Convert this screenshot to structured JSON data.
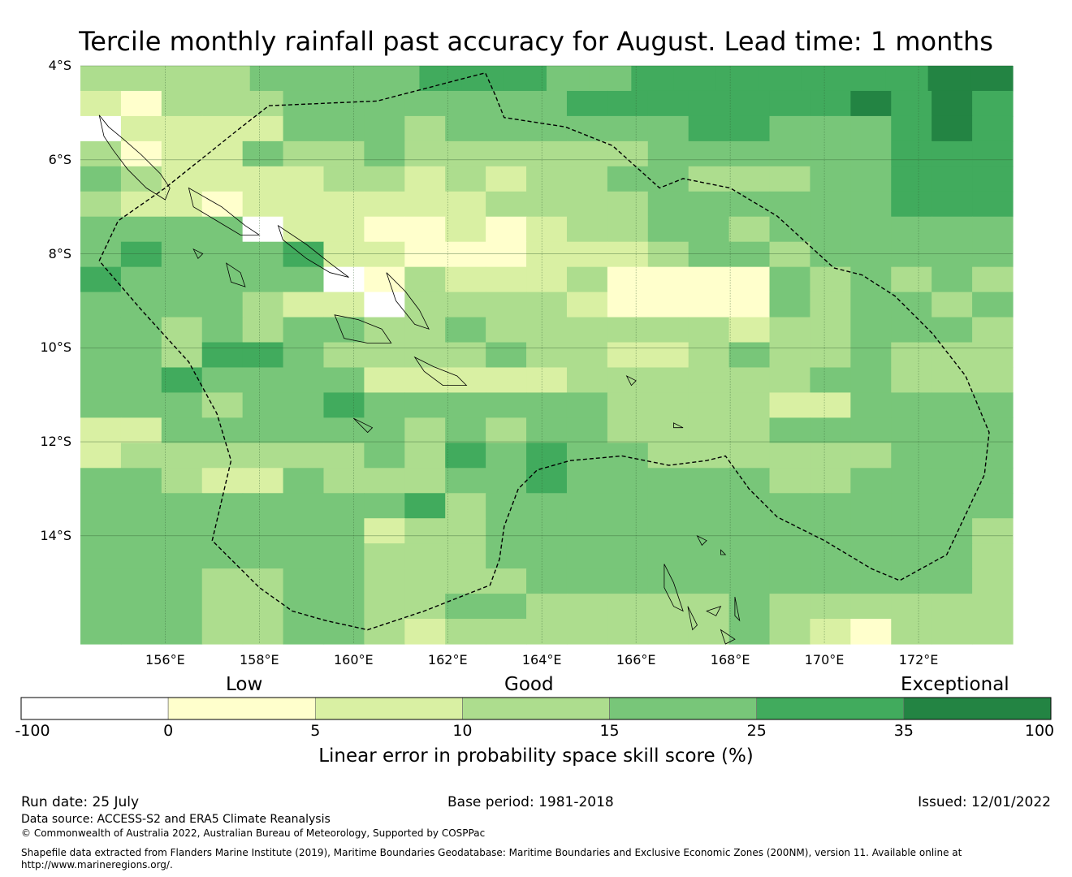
{
  "title": "Tercile monthly rainfall past accuracy for August. Lead time: 1 months",
  "map": {
    "lon_range": [
      154.2,
      174.0
    ],
    "lat_range": [
      -16.3,
      -4.0
    ],
    "lat_labels": [
      "4°S",
      "6°S",
      "8°S",
      "10°S",
      "12°S",
      "14°S"
    ],
    "lat_values": [
      -4,
      -6,
      -8,
      -10,
      -12,
      -14
    ],
    "lon_labels": [
      "156°E",
      "158°E",
      "160°E",
      "162°E",
      "164°E",
      "166°E",
      "168°E",
      "170°E",
      "172°E"
    ],
    "lon_values": [
      156,
      158,
      160,
      162,
      164,
      166,
      168,
      170,
      172
    ],
    "grid_colors": [
      "#ffffff",
      "#ffffcc",
      "#d9f0a3",
      "#addd8e",
      "#78c679",
      "#41ab5d",
      "#238443"
    ],
    "grid": [
      "3333444455544555555566",
      "21333444444455555556565",
      "02222444344444455444565",
      "31224334333333444444555",
      "43222233232334433344555",
      "32212222223333444444555",
      "44440221121233443444444",
      "45444522111222344344444",
      "54444401322231111434343",
      "44443220333321111434434",
      "44343443343333332334443",
      "44355433334332234334333",
      "44544442222233333344333",
      "44434454444443333224444",
      "22444444343443333444444",
      "23333334354544333333444",
      "44322433344544444334444",
      "44444444534444444444444",
      "44444442334444444444443",
      "44444443334444444444443",
      "44433443333444444444443",
      "44433443344333334333333",
      "44433443233333334321333"
    ],
    "eez_boundary": [
      [
        154.6,
        -8.15
      ],
      [
        155.0,
        -7.3
      ],
      [
        156.0,
        -6.6
      ],
      [
        157.0,
        -5.8
      ],
      [
        157.5,
        -5.4
      ],
      [
        158.2,
        -4.85
      ],
      [
        160.5,
        -4.75
      ],
      [
        162.8,
        -4.15
      ],
      [
        163.0,
        -4.6
      ],
      [
        163.2,
        -5.1
      ],
      [
        164.5,
        -5.3
      ],
      [
        165.5,
        -5.7
      ],
      [
        166.5,
        -6.6
      ],
      [
        167.0,
        -6.4
      ],
      [
        168.0,
        -6.6
      ],
      [
        169.0,
        -7.2
      ],
      [
        170.2,
        -8.3
      ],
      [
        170.8,
        -8.45
      ],
      [
        171.5,
        -8.9
      ],
      [
        172.3,
        -9.7
      ],
      [
        173.0,
        -10.6
      ],
      [
        173.5,
        -11.8
      ],
      [
        173.4,
        -12.7
      ],
      [
        172.6,
        -14.4
      ],
      [
        171.6,
        -14.95
      ],
      [
        171.0,
        -14.7
      ],
      [
        170.0,
        -14.1
      ],
      [
        169.0,
        -13.6
      ],
      [
        168.4,
        -13.0
      ],
      [
        167.9,
        -12.3
      ],
      [
        167.5,
        -12.4
      ],
      [
        166.7,
        -12.5
      ],
      [
        165.7,
        -12.3
      ],
      [
        164.6,
        -12.4
      ],
      [
        163.9,
        -12.6
      ],
      [
        163.5,
        -13.0
      ],
      [
        163.2,
        -13.8
      ],
      [
        163.1,
        -14.5
      ],
      [
        162.9,
        -15.05
      ],
      [
        161.5,
        -15.6
      ],
      [
        160.3,
        -16.0
      ],
      [
        159.4,
        -15.8
      ],
      [
        158.7,
        -15.6
      ],
      [
        158.0,
        -15.1
      ],
      [
        157.0,
        -14.1
      ],
      [
        157.4,
        -12.4
      ],
      [
        157.1,
        -11.4
      ],
      [
        156.5,
        -10.3
      ],
      [
        155.5,
        -9.2
      ],
      [
        154.6,
        -8.15
      ]
    ],
    "coastlines": [
      [
        [
          154.6,
          -5.05
        ],
        [
          154.8,
          -5.3
        ],
        [
          155.1,
          -5.55
        ],
        [
          155.5,
          -5.9
        ],
        [
          155.9,
          -6.3
        ],
        [
          156.1,
          -6.6
        ],
        [
          156.0,
          -6.85
        ],
        [
          155.6,
          -6.6
        ],
        [
          155.2,
          -6.2
        ],
        [
          154.9,
          -5.8
        ],
        [
          154.7,
          -5.5
        ],
        [
          154.6,
          -5.05
        ]
      ],
      [
        [
          156.5,
          -6.6
        ],
        [
          157.2,
          -7.0
        ],
        [
          157.7,
          -7.4
        ],
        [
          158.0,
          -7.6
        ],
        [
          157.6,
          -7.6
        ],
        [
          157.1,
          -7.3
        ],
        [
          156.6,
          -7.0
        ],
        [
          156.5,
          -6.6
        ]
      ],
      [
        [
          158.4,
          -7.4
        ],
        [
          159.0,
          -7.8
        ],
        [
          159.5,
          -8.2
        ],
        [
          159.9,
          -8.5
        ],
        [
          159.5,
          -8.4
        ],
        [
          159.0,
          -8.1
        ],
        [
          158.5,
          -7.7
        ],
        [
          158.4,
          -7.4
        ]
      ],
      [
        [
          160.7,
          -8.4
        ],
        [
          161.1,
          -8.8
        ],
        [
          161.4,
          -9.2
        ],
        [
          161.6,
          -9.6
        ],
        [
          161.3,
          -9.5
        ],
        [
          160.9,
          -9.0
        ],
        [
          160.7,
          -8.4
        ]
      ],
      [
        [
          159.6,
          -9.3
        ],
        [
          160.1,
          -9.4
        ],
        [
          160.6,
          -9.6
        ],
        [
          160.8,
          -9.9
        ],
        [
          160.3,
          -9.9
        ],
        [
          159.8,
          -9.8
        ],
        [
          159.6,
          -9.3
        ]
      ],
      [
        [
          161.3,
          -10.2
        ],
        [
          161.7,
          -10.4
        ],
        [
          162.2,
          -10.6
        ],
        [
          162.4,
          -10.8
        ],
        [
          161.9,
          -10.8
        ],
        [
          161.5,
          -10.5
        ],
        [
          161.3,
          -10.2
        ]
      ],
      [
        [
          157.3,
          -8.2
        ],
        [
          157.6,
          -8.4
        ],
        [
          157.7,
          -8.7
        ],
        [
          157.4,
          -8.6
        ],
        [
          157.3,
          -8.2
        ]
      ],
      [
        [
          156.6,
          -7.9
        ],
        [
          156.8,
          -8.0
        ],
        [
          156.7,
          -8.1
        ],
        [
          156.6,
          -7.9
        ]
      ],
      [
        [
          160.0,
          -11.5
        ],
        [
          160.4,
          -11.7
        ],
        [
          160.3,
          -11.8
        ],
        [
          160.0,
          -11.5
        ]
      ],
      [
        [
          166.6,
          -14.6
        ],
        [
          166.8,
          -15.0
        ],
        [
          167.0,
          -15.6
        ],
        [
          166.8,
          -15.5
        ],
        [
          166.6,
          -15.1
        ],
        [
          166.6,
          -14.6
        ]
      ],
      [
        [
          167.1,
          -15.5
        ],
        [
          167.3,
          -15.9
        ],
        [
          167.2,
          -16.0
        ],
        [
          167.1,
          -15.5
        ]
      ],
      [
        [
          168.1,
          -15.3
        ],
        [
          168.2,
          -15.8
        ],
        [
          168.1,
          -15.7
        ],
        [
          168.1,
          -15.3
        ]
      ],
      [
        [
          167.8,
          -16.0
        ],
        [
          168.1,
          -16.2
        ],
        [
          167.9,
          -16.3
        ],
        [
          167.8,
          -16.0
        ]
      ],
      [
        [
          167.5,
          -15.6
        ],
        [
          167.8,
          -15.5
        ],
        [
          167.7,
          -15.7
        ],
        [
          167.5,
          -15.6
        ]
      ],
      [
        [
          165.8,
          -10.6
        ],
        [
          166.0,
          -10.7
        ],
        [
          165.9,
          -10.8
        ],
        [
          165.8,
          -10.6
        ]
      ],
      [
        [
          166.8,
          -11.6
        ],
        [
          167.0,
          -11.7
        ],
        [
          166.8,
          -11.7
        ],
        [
          166.8,
          -11.6
        ]
      ],
      [
        [
          167.3,
          -14.0
        ],
        [
          167.5,
          -14.1
        ],
        [
          167.4,
          -14.2
        ],
        [
          167.3,
          -14.0
        ]
      ],
      [
        [
          167.8,
          -14.3
        ],
        [
          167.9,
          -14.4
        ],
        [
          167.8,
          -14.4
        ],
        [
          167.8,
          -14.3
        ]
      ]
    ]
  },
  "legend": {
    "categories": [
      "Low",
      "Good",
      "Exceptional"
    ],
    "ticks": [
      "-100",
      "0",
      "5",
      "10",
      "15",
      "25",
      "35",
      "100"
    ],
    "colors": [
      "#ffffff",
      "#ffffcc",
      "#d9f0a3",
      "#addd8e",
      "#78c679",
      "#41ab5d",
      "#238443"
    ],
    "label": "Linear error in probability space skill score (%)"
  },
  "footer": {
    "run_date": "Run date: 25 July",
    "base_period": "Base period: 1981-2018",
    "issued": "Issued: 12/01/2022",
    "data_source": "Data source: ACCESS-S2 and ERA5 Climate Reanalysis",
    "copyright": "© Commonwealth of Australia 2022, Australian Bureau of Meteorology, Supported by COSPPac",
    "shapefile_line1": "Shapefile data extracted from Flanders Marine Institute (2019), Maritime Boundaries Geodatabase: Maritime Boundaries and Exclusive Economic Zones (200NM), version 11. Available online at",
    "shapefile_line2": "http://www.marineregions.org/."
  }
}
